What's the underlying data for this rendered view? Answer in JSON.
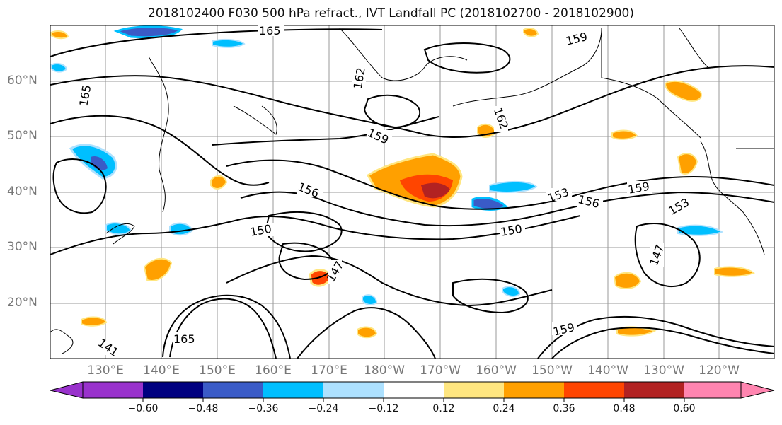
{
  "title": "2018102400 F030 500 hPa refract., IVT Landfall PC (2018102700 - 2018102900)",
  "map": {
    "lat_labels": [
      "60°N",
      "50°N",
      "40°N",
      "30°N",
      "20°N"
    ],
    "lon_labels": [
      "130°E",
      "140°E",
      "150°E",
      "160°E",
      "170°E",
      "180°W",
      "170°W",
      "160°W",
      "150°W",
      "140°W",
      "130°W",
      "120°W"
    ],
    "contour_labels": [
      "165",
      "159",
      "162",
      "165",
      "162",
      "159",
      "156",
      "153",
      "150",
      "147",
      "141",
      "159",
      "156",
      "153",
      "150",
      "147",
      "159",
      "165"
    ],
    "gridlines": true
  },
  "colorbar": {
    "ticks": [
      "−0.60",
      "−0.48",
      "−0.36",
      "−0.24",
      "−0.12",
      "0.12",
      "0.24",
      "0.36",
      "0.48",
      "0.60"
    ],
    "colors": [
      "#9932CC",
      "#000080",
      "#3A5BC7",
      "#00BFFF",
      "#ADE1FF",
      "#FFFFFF",
      "#FFE680",
      "#FFA000",
      "#FF4500",
      "#B22222",
      "#FF85B0"
    ],
    "extend": "both"
  }
}
